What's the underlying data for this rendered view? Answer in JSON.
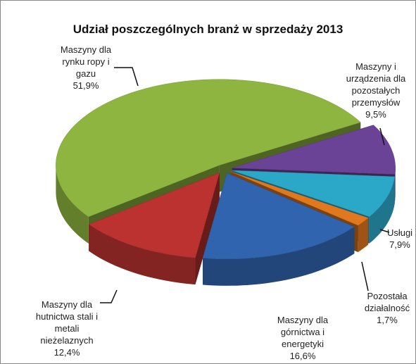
{
  "chart_data": {
    "type": "pie",
    "title": "Udział poszczególnych branż w sprzedaży 2013",
    "categories": [
      "Maszyny i urządzenia dla pozostałych przemysłów",
      "Usługi",
      "Pozostała działalność",
      "Maszyny dla górnictwa i energetyki",
      "Maszyny dla hutnictwa stali i metali nieżelaznych",
      "Maszyny dla rynku ropy i gazu"
    ],
    "values": [
      9.5,
      7.9,
      1.7,
      16.6,
      12.4,
      51.9
    ],
    "value_labels": [
      "9,5%",
      "7,9%",
      "1,7%",
      "16,6%",
      "12,4%",
      "51,9%"
    ],
    "colors": [
      "#6b4396",
      "#2ba7c8",
      "#e0781f",
      "#3064ae",
      "#bb3230",
      "#8db53f"
    ]
  }
}
